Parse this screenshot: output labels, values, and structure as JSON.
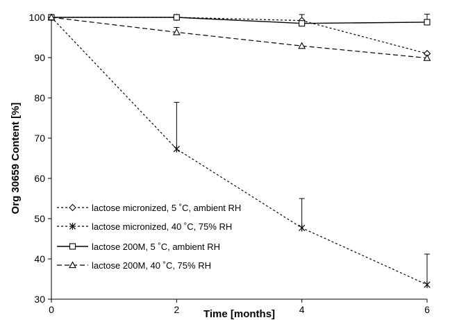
{
  "chart_data": {
    "type": "line",
    "xlabel": "Time [months]",
    "ylabel": "Org 30659 Content [%]",
    "xlim": [
      0,
      6
    ],
    "ylim": [
      30,
      100
    ],
    "x_ticks": [
      0,
      2,
      4,
      6
    ],
    "y_ticks": [
      30,
      40,
      50,
      60,
      70,
      80,
      90,
      100
    ],
    "grid": false,
    "legend_position": "bottom-left",
    "series": [
      {
        "name": "lactose micronized, 5 ˚C, ambient RH",
        "marker": "diamond",
        "line": "dotted",
        "x": [
          0,
          2,
          4,
          6
        ],
        "y": [
          100,
          100,
          99.2,
          91
        ],
        "error_plus": [
          0,
          0,
          1.5,
          0
        ]
      },
      {
        "name": "lactose micronized, 40 ˚C, 75% RH",
        "marker": "star",
        "line": "dotted",
        "x": [
          0,
          2,
          4,
          6
        ],
        "y": [
          100,
          67.3,
          47.7,
          33.6
        ],
        "error_plus": [
          0,
          11.6,
          7.3,
          7.6
        ]
      },
      {
        "name": "lactose 200M, 5 ˚C, ambient RH",
        "marker": "square",
        "line": "solid",
        "x": [
          0,
          2,
          4,
          6
        ],
        "y": [
          100,
          100,
          98.5,
          98.8
        ],
        "error_plus": [
          0,
          0,
          0,
          2
        ]
      },
      {
        "name": "lactose 200M, 40 ˚C, 75% RH",
        "marker": "triangle",
        "line": "dashed",
        "x": [
          0,
          2,
          4,
          6
        ],
        "y": [
          100,
          96.3,
          92.9,
          89.9
        ],
        "error_plus": [
          0,
          1.2,
          0,
          0
        ]
      }
    ]
  }
}
